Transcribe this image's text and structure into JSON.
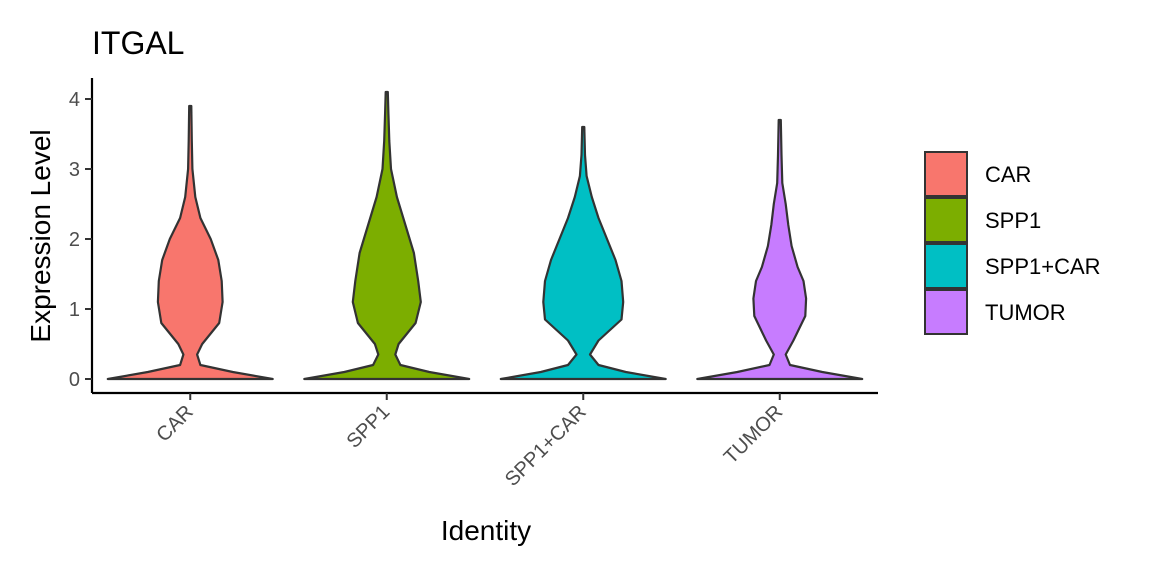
{
  "chart_data": {
    "type": "violin",
    "title": "ITGAL",
    "xlabel": "Identity",
    "ylabel": "Expression Level",
    "ylim": [
      -0.2,
      4.3
    ],
    "yticks": [
      0,
      1,
      2,
      3,
      4
    ],
    "categories": [
      "CAR",
      "SPP1",
      "SPP1+CAR",
      "TUMOR"
    ],
    "colors": [
      "#F8766D",
      "#7CAE00",
      "#00BFC4",
      "#C77CFF"
    ],
    "legend": {
      "position": "right",
      "entries": [
        "CAR",
        "SPP1",
        "SPP1+CAR",
        "TUMOR"
      ]
    },
    "grid": false,
    "series": [
      {
        "name": "CAR",
        "max": 3.9,
        "profile": [
          [
            0,
            0.97
          ],
          [
            0.1,
            0.5
          ],
          [
            0.2,
            0.12
          ],
          [
            0.35,
            0.08
          ],
          [
            0.5,
            0.14
          ],
          [
            0.8,
            0.34
          ],
          [
            1.1,
            0.38
          ],
          [
            1.4,
            0.37
          ],
          [
            1.7,
            0.33
          ],
          [
            2.0,
            0.24
          ],
          [
            2.3,
            0.12
          ],
          [
            2.6,
            0.06
          ],
          [
            3.0,
            0.025
          ],
          [
            3.4,
            0.018
          ],
          [
            3.9,
            0.012
          ]
        ]
      },
      {
        "name": "SPP1",
        "max": 4.1,
        "profile": [
          [
            0,
            0.97
          ],
          [
            0.1,
            0.5
          ],
          [
            0.2,
            0.16
          ],
          [
            0.35,
            0.1
          ],
          [
            0.5,
            0.14
          ],
          [
            0.8,
            0.34
          ],
          [
            1.1,
            0.4
          ],
          [
            1.4,
            0.37
          ],
          [
            1.8,
            0.32
          ],
          [
            2.2,
            0.22
          ],
          [
            2.6,
            0.12
          ],
          [
            3.0,
            0.05
          ],
          [
            3.4,
            0.03
          ],
          [
            3.8,
            0.02
          ],
          [
            4.1,
            0.012
          ]
        ]
      },
      {
        "name": "SPP1+CAR",
        "max": 3.6,
        "profile": [
          [
            0,
            0.97
          ],
          [
            0.1,
            0.5
          ],
          [
            0.2,
            0.18
          ],
          [
            0.35,
            0.08
          ],
          [
            0.55,
            0.18
          ],
          [
            0.85,
            0.45
          ],
          [
            1.1,
            0.47
          ],
          [
            1.4,
            0.45
          ],
          [
            1.7,
            0.38
          ],
          [
            2.0,
            0.28
          ],
          [
            2.3,
            0.18
          ],
          [
            2.6,
            0.1
          ],
          [
            2.9,
            0.04
          ],
          [
            3.2,
            0.02
          ],
          [
            3.6,
            0.012
          ]
        ]
      },
      {
        "name": "TUMOR",
        "max": 3.7,
        "profile": [
          [
            0,
            0.97
          ],
          [
            0.1,
            0.5
          ],
          [
            0.2,
            0.12
          ],
          [
            0.35,
            0.07
          ],
          [
            0.55,
            0.16
          ],
          [
            0.9,
            0.3
          ],
          [
            1.15,
            0.31
          ],
          [
            1.4,
            0.28
          ],
          [
            1.6,
            0.21
          ],
          [
            1.9,
            0.14
          ],
          [
            2.2,
            0.1
          ],
          [
            2.5,
            0.07
          ],
          [
            2.8,
            0.03
          ],
          [
            3.2,
            0.02
          ],
          [
            3.7,
            0.012
          ]
        ]
      }
    ]
  }
}
